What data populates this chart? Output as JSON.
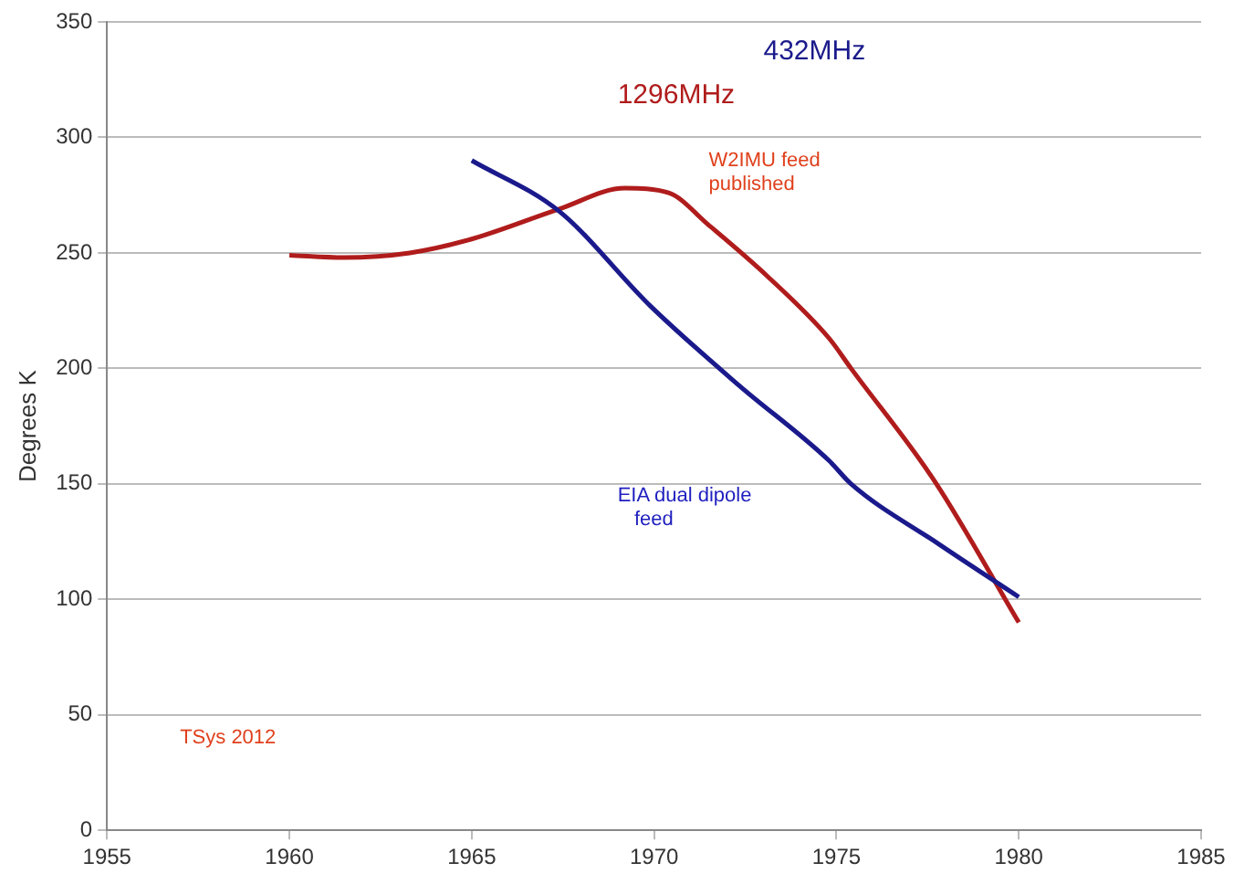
{
  "chart_data": {
    "type": "line",
    "ylabel": "Degrees K",
    "series": [
      {
        "name": "432MHz",
        "color": "#1a1a8c",
        "x": [
          1965,
          1967.4,
          1969.9,
          1972.3,
          1974.8,
          1975.4,
          1977.8,
          1980
        ],
        "values": [
          290,
          268,
          227,
          193,
          160,
          150,
          124,
          101
        ]
      },
      {
        "name": "1296MHz",
        "color": "#b01c1c",
        "x": [
          1960,
          1961.5,
          1963.3,
          1965,
          1967.4,
          1969.2,
          1970.4,
          1971.5,
          1973.1,
          1974.8,
          1975.4,
          1977.7,
          1980
        ],
        "values": [
          249,
          248,
          250,
          256,
          269,
          278,
          276,
          262,
          240,
          213,
          200,
          151,
          90
        ]
      }
    ],
    "annotations": [
      "W2IMU feed published",
      "EIA dual dipole feed",
      "TSys 2012"
    ],
    "xlim": [
      1955,
      1985
    ],
    "xticks": [
      1955,
      1960,
      1965,
      1970,
      1975,
      1980,
      1985
    ],
    "ylim": [
      0,
      350
    ],
    "yticks": [
      0,
      50,
      100,
      150,
      200,
      250,
      300,
      350
    ],
    "grid": "y",
    "legend": false,
    "marker": "none",
    "line_style": "solid"
  }
}
